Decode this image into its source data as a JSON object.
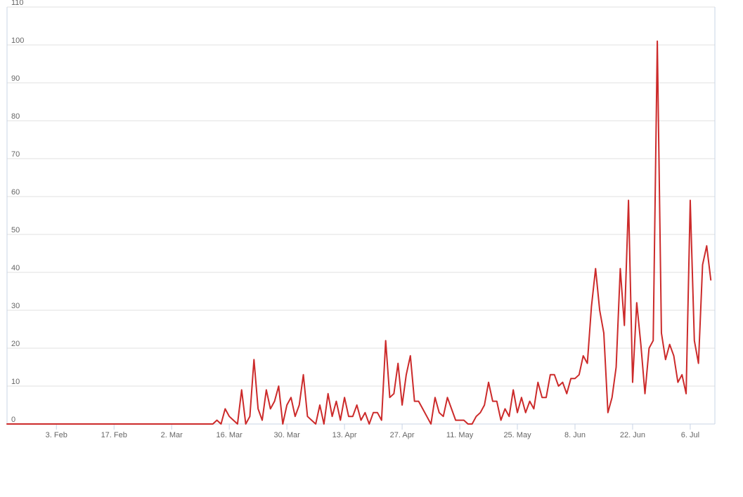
{
  "chart_data": {
    "type": "line",
    "title": "",
    "xlabel": "",
    "ylabel": "",
    "ylim": [
      0,
      110
    ],
    "grid": true,
    "legend": "none",
    "line_color": "#cc2a2a",
    "grid_color": "#e0e0e0",
    "axis_color": "#c8d4e6",
    "y_ticks": [
      0,
      10,
      20,
      30,
      40,
      50,
      60,
      70,
      80,
      90,
      100,
      110
    ],
    "x_ticks": [
      {
        "label": "3. Feb",
        "index": 12
      },
      {
        "label": "17. Feb",
        "index": 26
      },
      {
        "label": "2. Mar",
        "index": 40
      },
      {
        "label": "16. Mar",
        "index": 54
      },
      {
        "label": "30. Mar",
        "index": 68
      },
      {
        "label": "13. Apr",
        "index": 82
      },
      {
        "label": "27. Apr",
        "index": 96
      },
      {
        "label": "11. May",
        "index": 110
      },
      {
        "label": "25. May",
        "index": 124
      },
      {
        "label": "8. Jun",
        "index": 138
      },
      {
        "label": "22. Jun",
        "index": 152
      },
      {
        "label": "6. Jul",
        "index": 166
      }
    ],
    "series": [
      {
        "values": [
          0,
          0,
          0,
          0,
          0,
          0,
          0,
          0,
          0,
          0,
          0,
          0,
          0,
          0,
          0,
          0,
          0,
          0,
          0,
          0,
          0,
          0,
          0,
          0,
          0,
          0,
          0,
          0,
          0,
          0,
          0,
          0,
          0,
          0,
          0,
          0,
          0,
          0,
          0,
          0,
          0,
          0,
          0,
          0,
          0,
          0,
          0,
          0,
          0,
          0,
          0,
          1,
          0,
          4,
          2,
          1,
          0,
          9,
          0,
          2,
          17,
          4,
          1,
          9,
          4,
          6,
          10,
          0,
          5,
          7,
          2,
          5,
          13,
          2,
          1,
          0,
          5,
          0,
          8,
          2,
          6,
          1,
          7,
          2,
          2,
          5,
          1,
          3,
          0,
          3,
          3,
          1,
          22,
          7,
          8,
          16,
          5,
          13,
          18,
          6,
          6,
          4,
          2,
          0,
          7,
          3,
          2,
          7,
          4,
          1,
          1,
          1,
          0,
          0,
          2,
          3,
          5,
          11,
          6,
          6,
          1,
          4,
          2,
          9,
          3,
          7,
          3,
          6,
          4,
          11,
          7,
          7,
          13,
          13,
          10,
          11,
          8,
          12,
          12,
          13,
          18,
          16,
          31,
          41,
          30,
          24,
          3,
          7,
          15,
          41,
          26,
          59,
          11,
          32,
          21,
          8,
          20,
          22,
          101,
          24,
          17,
          21,
          18,
          11,
          13,
          8,
          59,
          22,
          16,
          42,
          47,
          38
        ]
      }
    ]
  }
}
